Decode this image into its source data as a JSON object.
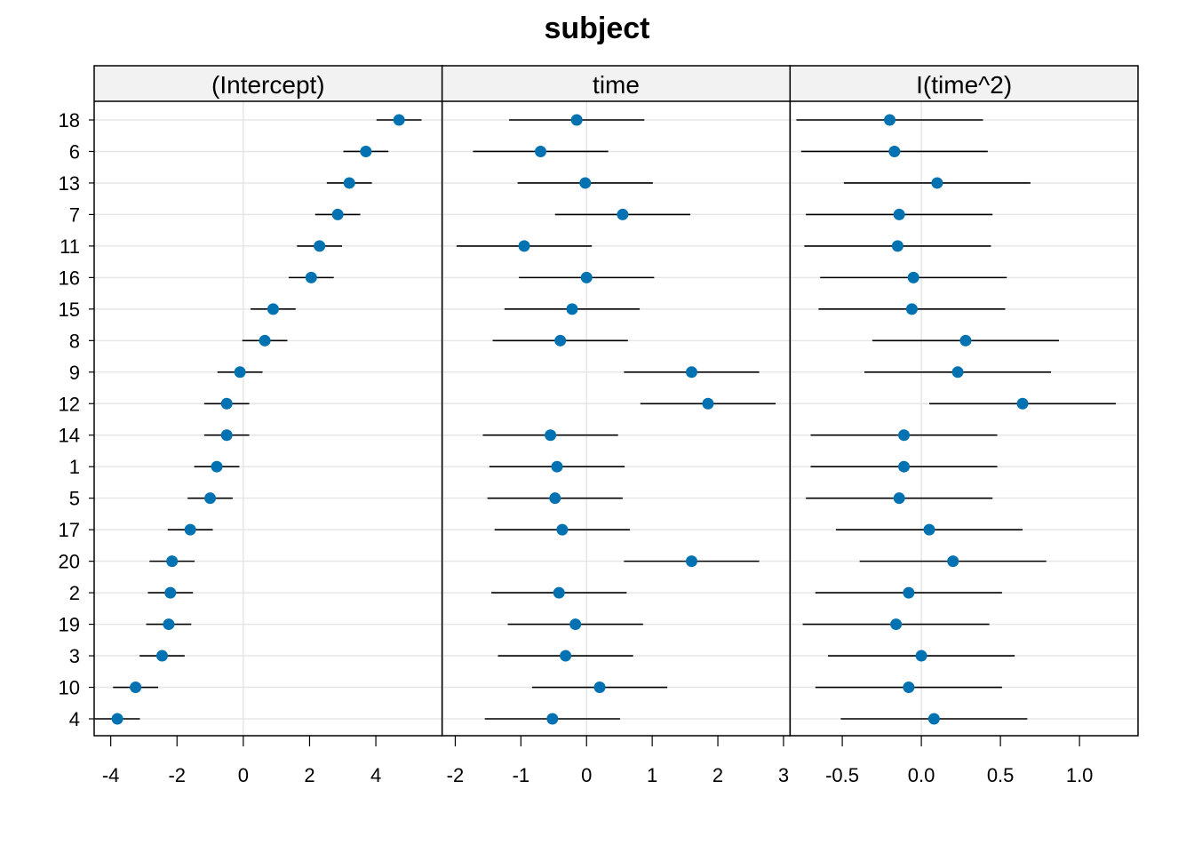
{
  "chart_data": {
    "type": "scatter",
    "title": "subject",
    "categories": [
      "18",
      "6",
      "13",
      "7",
      "11",
      "16",
      "15",
      "8",
      "9",
      "12",
      "14",
      "1",
      "5",
      "17",
      "20",
      "2",
      "19",
      "3",
      "10",
      "4"
    ],
    "marker_color": "#0072B2",
    "panels": [
      {
        "strip": "(Intercept)",
        "xlim": [
          -4.5,
          6.0
        ],
        "ticks": [
          -4,
          -2,
          0,
          2,
          4
        ],
        "tick_labels": [
          "-4",
          "-2",
          "0",
          "2",
          "4"
        ],
        "estimates": [
          4.7,
          3.7,
          3.2,
          2.85,
          2.3,
          2.05,
          0.9,
          0.65,
          -0.1,
          -0.5,
          -0.5,
          -0.8,
          -1.0,
          -1.6,
          -2.15,
          -2.2,
          -2.25,
          -2.45,
          -3.25,
          -3.8
        ],
        "half_width": 0.68
      },
      {
        "strip": "time",
        "xlim": [
          -2.2,
          3.1
        ],
        "ticks": [
          -2,
          -1,
          0,
          1,
          2,
          3
        ],
        "tick_labels": [
          "-2",
          "-1",
          "0",
          "1",
          "2",
          "3"
        ],
        "estimates": [
          -0.15,
          -0.7,
          -0.02,
          0.55,
          -0.95,
          0.0,
          -0.22,
          -0.4,
          1.6,
          1.85,
          -0.55,
          -0.45,
          -0.48,
          -0.37,
          1.6,
          -0.42,
          -0.17,
          -0.32,
          0.2,
          -0.52
        ],
        "half_width": 1.03
      },
      {
        "strip": "I(time^2)",
        "xlim": [
          -0.83,
          1.37
        ],
        "ticks": [
          -0.5,
          0.0,
          0.5,
          1.0
        ],
        "tick_labels": [
          "-0.5",
          "0.0",
          "0.5",
          "1.0"
        ],
        "estimates": [
          -0.2,
          -0.17,
          0.1,
          -0.14,
          -0.15,
          -0.05,
          -0.06,
          0.28,
          0.23,
          0.64,
          -0.11,
          -0.11,
          -0.14,
          0.05,
          0.2,
          -0.08,
          -0.16,
          0.0,
          -0.08,
          0.08
        ],
        "half_width": 0.59
      }
    ]
  }
}
